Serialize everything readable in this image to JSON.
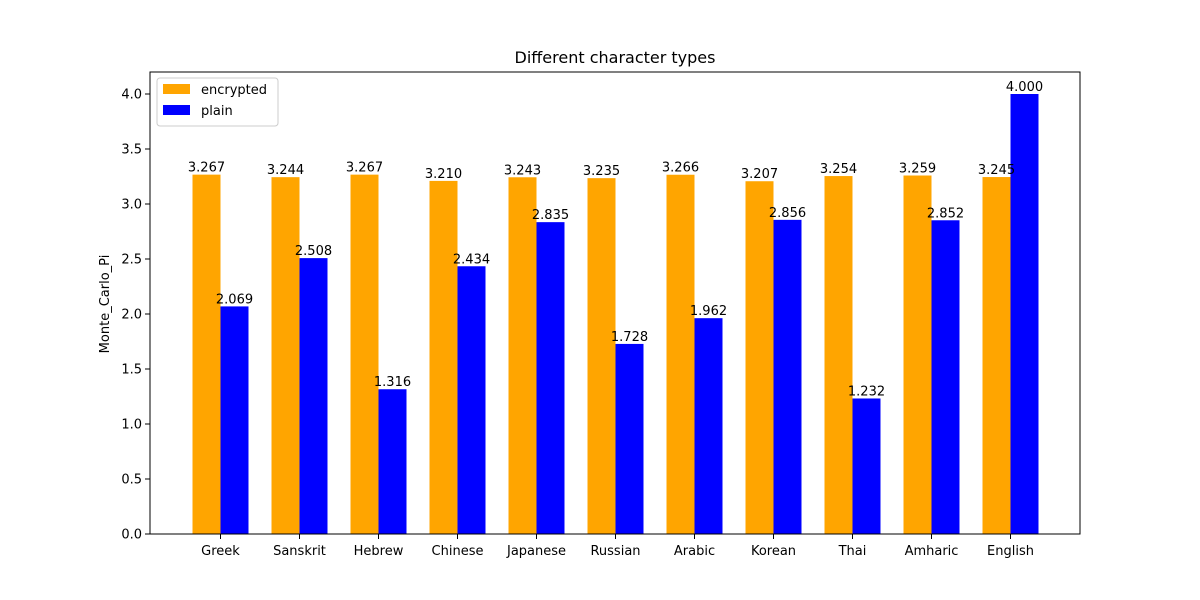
{
  "chart_data": {
    "type": "bar",
    "title": "Different character types",
    "xlabel": "",
    "ylabel": "Monte_Carlo_Pi",
    "categories": [
      "Greek",
      "Sanskrit",
      "Hebrew",
      "Chinese",
      "Japanese",
      "Russian",
      "Arabic",
      "Korean",
      "Thai",
      "Amharic",
      "English"
    ],
    "series": [
      {
        "name": "encrypted",
        "color": "#ffa500",
        "values": [
          3.267,
          3.244,
          3.267,
          3.21,
          3.243,
          3.235,
          3.266,
          3.207,
          3.254,
          3.259,
          3.245
        ],
        "labels": [
          "3.267",
          "3.244",
          "3.267",
          "3.210",
          "3.243",
          "3.235",
          "3.266",
          "3.207",
          "3.254",
          "3.259",
          "3.245"
        ]
      },
      {
        "name": "plain",
        "color": "#0000ff",
        "values": [
          2.069,
          2.508,
          1.316,
          2.434,
          2.835,
          1.728,
          1.962,
          2.856,
          1.232,
          2.852,
          4.0
        ],
        "labels": [
          "2.069",
          "2.508",
          "1.316",
          "2.434",
          "2.835",
          "1.728",
          "1.962",
          "2.856",
          "1.232",
          "2.852",
          "4.000"
        ]
      }
    ],
    "ylim": [
      0,
      4.2
    ],
    "yticks": [
      "0.0",
      "0.5",
      "1.0",
      "1.5",
      "2.0",
      "2.5",
      "3.0",
      "3.5",
      "4.0"
    ],
    "grid": false,
    "legend": "top-left"
  }
}
